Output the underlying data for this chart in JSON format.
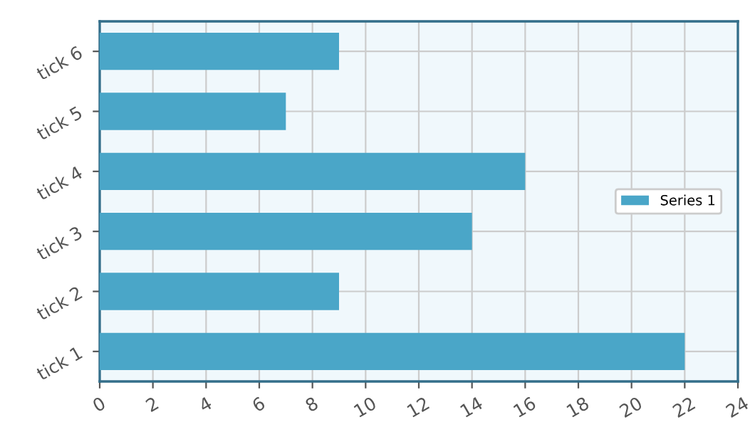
{
  "chart_data": {
    "type": "bar",
    "orientation": "horizontal",
    "categories": [
      "tick 6",
      "tick 5",
      "tick 4",
      "tick 3",
      "tick 2",
      "tick 1"
    ],
    "series": [
      {
        "name": "Series 1",
        "color": "#4aa6c8",
        "values": [
          9,
          7,
          16,
          14,
          9,
          22
        ]
      }
    ],
    "xlim": [
      0,
      24
    ],
    "xticks": [
      0,
      2,
      4,
      6,
      8,
      10,
      12,
      14,
      16,
      18,
      20,
      22,
      24
    ],
    "grid": true,
    "legend": "right"
  }
}
